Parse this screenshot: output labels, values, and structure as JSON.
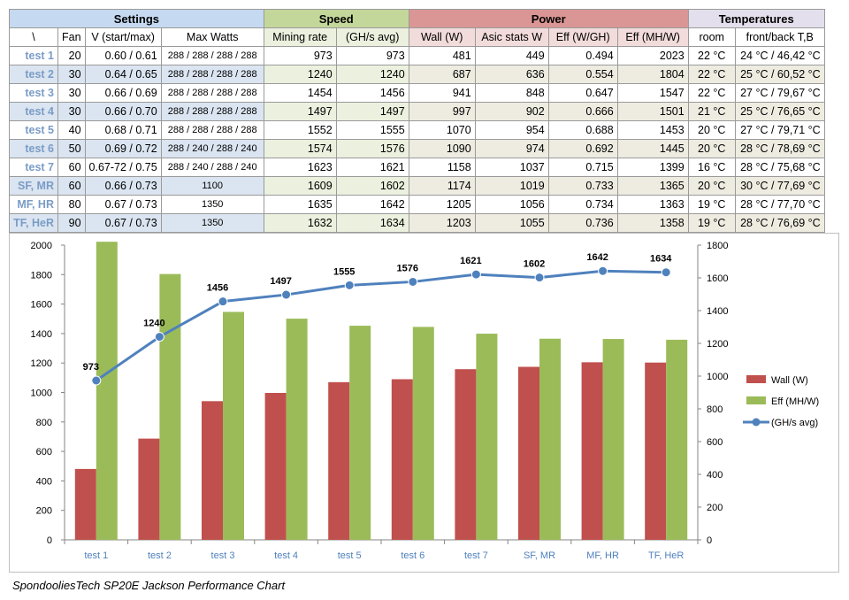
{
  "table": {
    "groups": [
      "Settings",
      "Speed",
      "Power",
      "Temperatures"
    ],
    "headers": [
      "\\",
      "Fan",
      "V (start/max)",
      "Max Watts",
      "Mining rate",
      "(GH/s avg)",
      "Wall (W)",
      "Asic stats W",
      "Eff (W/GH)",
      "Eff (MH/W)",
      "room",
      "front/back T,B"
    ],
    "rows": [
      [
        "test 1",
        "20",
        "0.60 / 0.61",
        "288 / 288 / 288 / 288",
        "973",
        "973",
        "481",
        "449",
        "0.494",
        "2023",
        "22 °C",
        "24 °C / 46,42 °C"
      ],
      [
        "test 2",
        "30",
        "0.64 / 0.65",
        "288 / 288 / 288 / 288",
        "1240",
        "1240",
        "687",
        "636",
        "0.554",
        "1804",
        "22 °C",
        "25 °C / 60,52 °C"
      ],
      [
        "test 3",
        "30",
        "0.66 / 0.69",
        "288 / 288 / 288 / 288",
        "1454",
        "1456",
        "941",
        "848",
        "0.647",
        "1547",
        "22 °C",
        "27 °C / 79,67 °C"
      ],
      [
        "test 4",
        "30",
        "0.66 / 0.70",
        "288 / 288 / 288 / 288",
        "1497",
        "1497",
        "997",
        "902",
        "0.666",
        "1501",
        "21 °C",
        "25 °C / 76,65 °C"
      ],
      [
        "test 5",
        "40",
        "0.68 / 0.71",
        "288 / 288 / 288 / 288",
        "1552",
        "1555",
        "1070",
        "954",
        "0.688",
        "1453",
        "20 °C",
        "27 °C / 79,71 °C"
      ],
      [
        "test 6",
        "50",
        "0.69 / 0.72",
        "288 / 240 / 288 / 240",
        "1574",
        "1576",
        "1090",
        "974",
        "0.692",
        "1445",
        "20 °C",
        "28 °C / 78,69 °C"
      ],
      [
        "test 7",
        "60",
        "0.67-72 / 0.75",
        "288 / 240 / 288 / 240",
        "1623",
        "1621",
        "1158",
        "1037",
        "0.715",
        "1399",
        "16 °C",
        "28 °C / 75,68 °C"
      ],
      [
        "SF, MR",
        "60",
        "0.66 / 0.73",
        "1100",
        "1609",
        "1602",
        "1174",
        "1019",
        "0.733",
        "1365",
        "20 °C",
        "30 °C / 77,69 °C"
      ],
      [
        "MF, HR",
        "80",
        "0.67 / 0.73",
        "1350",
        "1635",
        "1642",
        "1205",
        "1056",
        "0.734",
        "1363",
        "19 °C",
        "28 °C / 77,70 °C"
      ],
      [
        "TF, HeR",
        "90",
        "0.67 / 0.73",
        "1350",
        "1632",
        "1634",
        "1203",
        "1055",
        "0.736",
        "1358",
        "19 °C",
        "28 °C / 76,69 °C"
      ]
    ]
  },
  "chart_data": {
    "type": "bar",
    "categories": [
      "test 1",
      "test 2",
      "test 3",
      "test 4",
      "test 5",
      "test 6",
      "test 7",
      "SF, MR",
      "MF, HR",
      "TF, HeR"
    ],
    "series": [
      {
        "name": "Wall (W)",
        "type": "bar",
        "axis": "left",
        "color": "#c0504d",
        "values": [
          481,
          687,
          941,
          997,
          1070,
          1090,
          1158,
          1174,
          1205,
          1203
        ]
      },
      {
        "name": "Eff (MH/W)",
        "type": "bar",
        "axis": "left",
        "color": "#9bbb59",
        "values": [
          2023,
          1804,
          1547,
          1501,
          1453,
          1445,
          1399,
          1365,
          1363,
          1358
        ]
      },
      {
        "name": "(GH/s avg)",
        "type": "line",
        "axis": "right",
        "color": "#4f81bd",
        "values": [
          973,
          1240,
          1456,
          1497,
          1555,
          1576,
          1621,
          1602,
          1642,
          1634
        ],
        "data_labels": [
          "973",
          "1240",
          "1456",
          "1497",
          "1555",
          "1576",
          "1621",
          "1602",
          "1642",
          "1634"
        ]
      }
    ],
    "ylim_left": [
      0,
      2000
    ],
    "yticks_left": [
      0,
      200,
      400,
      600,
      800,
      1000,
      1200,
      1400,
      1600,
      1800,
      2000
    ],
    "ylim_right": [
      0,
      1800
    ],
    "yticks_right": [
      0,
      200,
      400,
      600,
      800,
      1000,
      1200,
      1400,
      1600,
      1800
    ],
    "grid": false,
    "legend": "right",
    "title": "",
    "xlabel": "",
    "ylabel": ""
  },
  "caption": "SpondooliesTech SP20E Jackson Performance Chart"
}
